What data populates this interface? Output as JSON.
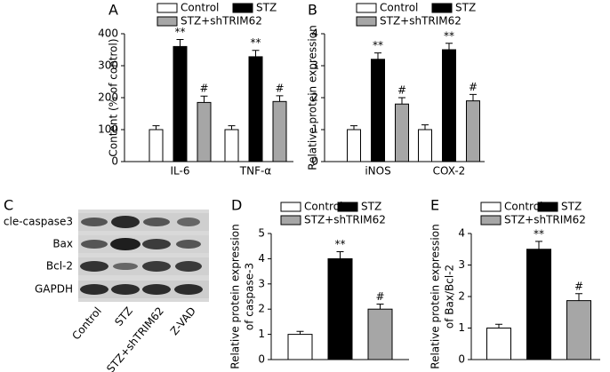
{
  "chart_data": [
    {
      "type": "bar",
      "panel_label": "A",
      "ylabel": [
        "Content (% of control)"
      ],
      "categories": [
        "IL-6",
        "TNF-α"
      ],
      "ylim": [
        0,
        400
      ],
      "yticks": [
        0,
        100,
        200,
        300,
        400
      ],
      "series": [
        {
          "name": "Control",
          "color": "#ffffff",
          "values": [
            100,
            100
          ],
          "errors": [
            12,
            12
          ],
          "annotations": [
            null,
            null
          ]
        },
        {
          "name": "STZ",
          "color": "#000000",
          "values": [
            360,
            328
          ],
          "errors": [
            22,
            20
          ],
          "annotations": [
            "**",
            "**"
          ]
        },
        {
          "name": "STZ+shTRIM62",
          "color": "#a6a6a6",
          "values": [
            185,
            188
          ],
          "errors": [
            20,
            18
          ],
          "annotations": [
            "#",
            "#"
          ]
        }
      ]
    },
    {
      "type": "bar",
      "panel_label": "B",
      "ylabel": [
        "Relative protein expression"
      ],
      "categories": [
        "iNOS",
        "COX-2"
      ],
      "ylim": [
        0,
        4
      ],
      "yticks": [
        0,
        1,
        2,
        3,
        4
      ],
      "series": [
        {
          "name": "Control",
          "color": "#ffffff",
          "values": [
            1.0,
            1.0
          ],
          "errors": [
            0.12,
            0.15
          ],
          "annotations": [
            null,
            null
          ]
        },
        {
          "name": "STZ",
          "color": "#000000",
          "values": [
            3.2,
            3.5
          ],
          "errors": [
            0.2,
            0.2
          ],
          "annotations": [
            "**",
            "**"
          ]
        },
        {
          "name": "STZ+shTRIM62",
          "color": "#a6a6a6",
          "values": [
            1.8,
            1.9
          ],
          "errors": [
            0.2,
            0.2
          ],
          "annotations": [
            "#",
            "#"
          ]
        }
      ]
    },
    {
      "type": "blot",
      "panel_label": "C",
      "rows": [
        "cle-caspase3",
        "Bax",
        "Bcl-2",
        "GAPDH"
      ],
      "columns": [
        "Control",
        "STZ",
        "STZ+shTRIM62",
        "Z-VAD"
      ]
    },
    {
      "type": "bar",
      "panel_label": "D",
      "ylabel": [
        "Relative protein expression",
        "of caspase-3"
      ],
      "categories": [
        null
      ],
      "ylim": [
        0,
        5
      ],
      "yticks": [
        0,
        1,
        2,
        3,
        4,
        5
      ],
      "series": [
        {
          "name": "Control",
          "color": "#ffffff",
          "values": [
            1.0
          ],
          "errors": [
            0.12
          ],
          "annotations": [
            null
          ]
        },
        {
          "name": "STZ",
          "color": "#000000",
          "values": [
            4.0
          ],
          "errors": [
            0.28
          ],
          "annotations": [
            "**"
          ]
        },
        {
          "name": "STZ+shTRIM62",
          "color": "#a6a6a6",
          "values": [
            2.0
          ],
          "errors": [
            0.2
          ],
          "annotations": [
            "#"
          ]
        }
      ]
    },
    {
      "type": "bar",
      "panel_label": "E",
      "ylabel": [
        "Relative protein expression",
        "of Bax/Bcl-2"
      ],
      "categories": [
        null
      ],
      "ylim": [
        0,
        4
      ],
      "yticks": [
        0,
        1,
        2,
        3,
        4
      ],
      "series": [
        {
          "name": "Control",
          "color": "#ffffff",
          "values": [
            1.0
          ],
          "errors": [
            0.12
          ],
          "annotations": [
            null
          ]
        },
        {
          "name": "STZ",
          "color": "#000000",
          "values": [
            3.5
          ],
          "errors": [
            0.25
          ],
          "annotations": [
            "**"
          ]
        },
        {
          "name": "STZ+shTRIM62",
          "color": "#a6a6a6",
          "values": [
            1.87
          ],
          "errors": [
            0.22
          ],
          "annotations": [
            "#"
          ]
        }
      ]
    }
  ]
}
